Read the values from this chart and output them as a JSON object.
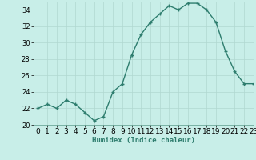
{
  "x": [
    0,
    1,
    2,
    3,
    4,
    5,
    6,
    7,
    8,
    9,
    10,
    11,
    12,
    13,
    14,
    15,
    16,
    17,
    18,
    19,
    20,
    21,
    22,
    23
  ],
  "y": [
    22,
    22.5,
    22,
    23,
    22.5,
    21.5,
    20.5,
    21,
    24,
    25,
    28.5,
    31,
    32.5,
    33.5,
    34.5,
    34,
    34.8,
    34.8,
    34,
    32.5,
    29,
    26.5,
    25,
    25
  ],
  "line_color": "#2e7d6e",
  "marker_color": "#2e7d6e",
  "bg_color": "#c8eee8",
  "grid_color": "#b0d8d0",
  "xlabel": "Humidex (Indice chaleur)",
  "ylim": [
    20,
    35
  ],
  "xlim": [
    -0.5,
    23
  ],
  "yticks": [
    20,
    22,
    24,
    26,
    28,
    30,
    32,
    34
  ],
  "xticks": [
    0,
    1,
    2,
    3,
    4,
    5,
    6,
    7,
    8,
    9,
    10,
    11,
    12,
    13,
    14,
    15,
    16,
    17,
    18,
    19,
    20,
    21,
    22,
    23
  ],
  "xlabel_fontsize": 6.5,
  "tick_fontsize": 6,
  "marker_size": 3.5,
  "line_width": 1.0
}
